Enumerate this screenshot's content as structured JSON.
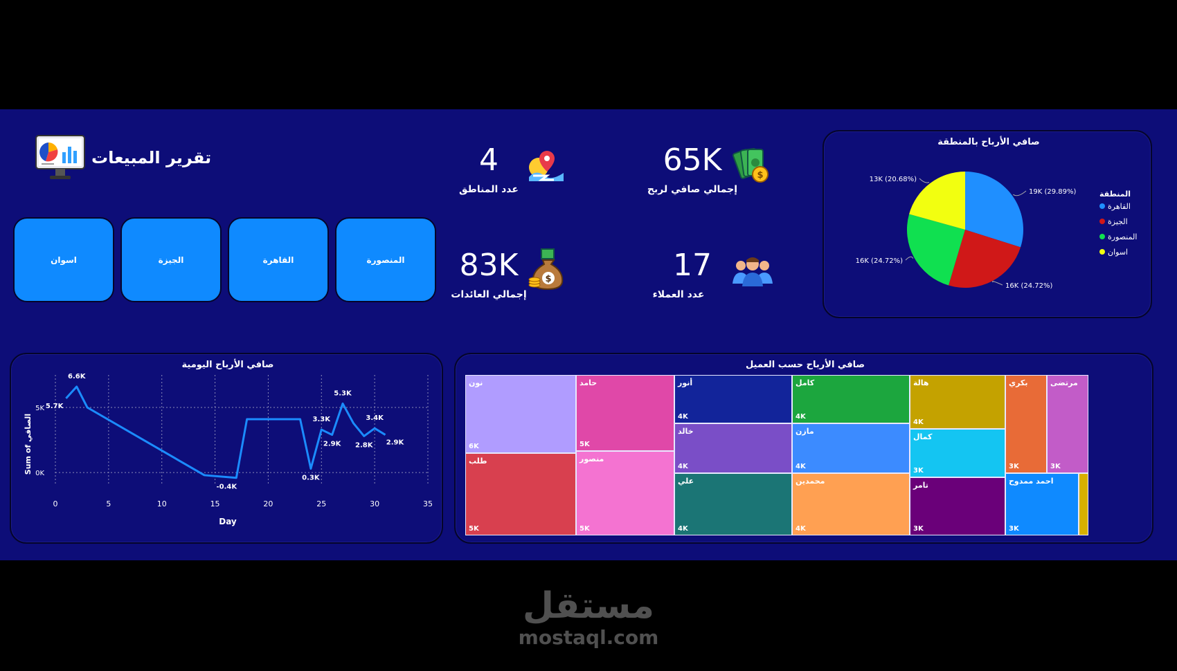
{
  "header": {
    "title": "تقرير المبيعات"
  },
  "slicers": [
    "المنصورة",
    "القاهرة",
    "الجيزة",
    "اسوان"
  ],
  "kpis": {
    "regions": {
      "value": "4",
      "label": "عدد المناطق"
    },
    "net_profit": {
      "value": "65K",
      "label": "إجمالي صافي لربح"
    },
    "revenue": {
      "value": "83K",
      "label": "إجمالي العائدات"
    },
    "customers": {
      "value": "17",
      "label": "عدد العملاء"
    }
  },
  "pie_panel": {
    "title": "صافي الأرباح بالمنطقة",
    "legend_title": "المنطقة"
  },
  "line_panel": {
    "title": "صافي الأرباح اليومية"
  },
  "treemap_panel": {
    "title": "صافي الأرباح حسب العميل"
  },
  "footer": {
    "logo_text": "مستقل",
    "logo_url_text": "mostaql.com"
  },
  "colors": {
    "background": "#0d0d78",
    "slicer": "#0f8aff",
    "line": "#1b8cff"
  },
  "chart_data": [
    {
      "type": "pie",
      "title": "صافي الأرباح بالمنطقة",
      "legend_title": "المنطقة",
      "labels": [
        "القاهرة",
        "الجيزة",
        "المنصورة",
        "اسوان"
      ],
      "values": [
        29.89,
        24.72,
        24.72,
        20.68
      ],
      "data_labels": [
        "19K (29.89%)",
        "16K (24.72%)",
        "16K (24.72%)",
        "13K (20.68%)"
      ],
      "colors": [
        "#1f8fff",
        "#d01818",
        "#10e050",
        "#f2ff10"
      ],
      "legend_position": "right"
    },
    {
      "type": "line",
      "title": "صافي الأرباح اليومية",
      "xlabel": "Day",
      "ylabel": "Sum of الصافي",
      "xlim": [
        0,
        35
      ],
      "ylim": [
        -1000,
        7500
      ],
      "x_ticks": [
        "0",
        "5",
        "10",
        "15",
        "20",
        "25",
        "30",
        "35"
      ],
      "y_ticks": [
        "0K",
        "5K"
      ],
      "grid": true,
      "x": [
        1,
        2,
        3,
        14,
        17,
        18,
        23,
        24,
        25,
        26,
        27,
        28,
        29,
        30,
        31
      ],
      "y": [
        5700,
        6600,
        5000,
        -200,
        -400,
        4100,
        4100,
        300,
        3300,
        2900,
        5300,
        3800,
        2800,
        3400,
        2900
      ],
      "data_labels": [
        {
          "x": 1,
          "text": "5.7K"
        },
        {
          "x": 2,
          "text": "6.6K"
        },
        {
          "x": 17,
          "text": "-0.4K"
        },
        {
          "x": 24,
          "text": "0.3K"
        },
        {
          "x": 25,
          "text": "3.3K"
        },
        {
          "x": 26,
          "text": "2.9K"
        },
        {
          "x": 27,
          "text": "5.3K"
        },
        {
          "x": 29,
          "text": "2.8K"
        },
        {
          "x": 30,
          "text": "3.4K"
        },
        {
          "x": 31,
          "text": "2.9K"
        }
      ]
    },
    {
      "type": "treemap",
      "title": "صافي الأرباح حسب العميل",
      "items": [
        {
          "name": "نون",
          "value": "6K",
          "color": "#b09cff"
        },
        {
          "name": "طلب",
          "value": "5K",
          "color": "#d8404f"
        },
        {
          "name": "حامد",
          "value": "5K",
          "color": "#e048a8"
        },
        {
          "name": "منصور",
          "value": "5K",
          "color": "#f473d1"
        },
        {
          "name": "أنور",
          "value": "4K",
          "color": "#12249a"
        },
        {
          "name": "خالد",
          "value": "4K",
          "color": "#7a4ec7"
        },
        {
          "name": "علي",
          "value": "4K",
          "color": "#1b7575"
        },
        {
          "name": "كامل",
          "value": "4K",
          "color": "#1ca63e"
        },
        {
          "name": "مازن",
          "value": "4K",
          "color": "#3c8bff"
        },
        {
          "name": "محمدين",
          "value": "4K",
          "color": "#ffa052"
        },
        {
          "name": "هالة",
          "value": "4K",
          "color": "#c4a200"
        },
        {
          "name": "كمال",
          "value": "3K",
          "color": "#14c5f2"
        },
        {
          "name": "تامر",
          "value": "3K",
          "color": "#6a0079"
        },
        {
          "name": "بكري",
          "value": "3K",
          "color": "#e86b37"
        },
        {
          "name": "مرتضى",
          "value": "3K",
          "color": "#c25cc8"
        },
        {
          "name": "احمد ممدوح",
          "value": "3K",
          "color": "#0f8aff"
        },
        {
          "name": "",
          "value": "",
          "color": "#d8b000"
        }
      ]
    }
  ]
}
